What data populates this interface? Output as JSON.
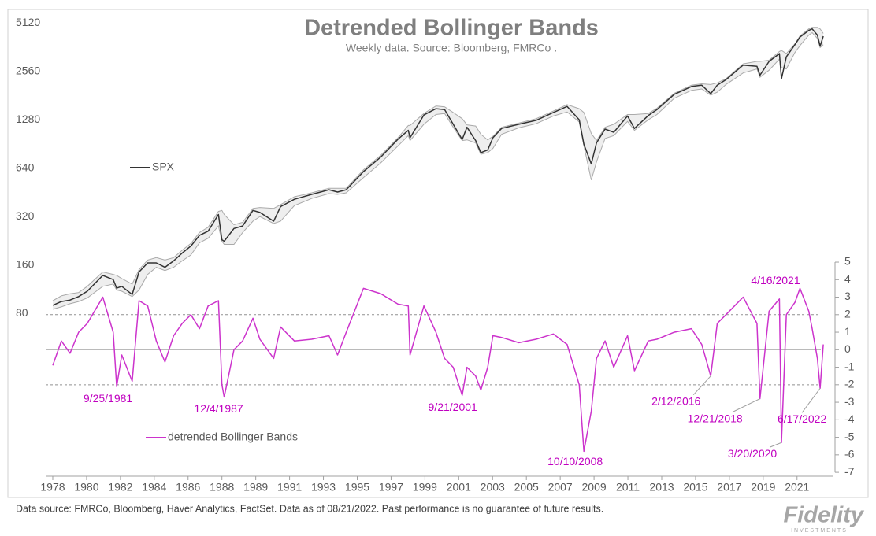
{
  "chart_data": {
    "type": "line",
    "title": "Detrended Bollinger Bands",
    "subtitle": "Weekly data.  Source: Bloomberg, FMRCo .",
    "x": [
      1978.0,
      1978.5,
      1979.0,
      1979.5,
      1980.0,
      1980.9,
      1981.5,
      1981.7,
      1982.0,
      1982.6,
      1983.0,
      1983.5,
      1984.0,
      1984.5,
      1985.0,
      1985.5,
      1986.0,
      1986.5,
      1987.0,
      1987.6,
      1987.8,
      1987.93,
      1988.5,
      1989.0,
      1989.6,
      1990.0,
      1990.8,
      1991.2,
      1992.0,
      1993.0,
      1994.0,
      1994.5,
      1995.0,
      1996.0,
      1997.0,
      1998.0,
      1998.6,
      1998.7,
      1999.5,
      2000.2,
      2000.7,
      2001.2,
      2001.72,
      2002.0,
      2002.5,
      2002.8,
      2003.2,
      2003.5,
      2004.0,
      2005.0,
      2006.0,
      2007.0,
      2007.8,
      2008.5,
      2008.77,
      2009.2,
      2009.5,
      2010.0,
      2010.5,
      2011.3,
      2011.7,
      2012.5,
      2013.0,
      2014.0,
      2015.0,
      2015.6,
      2016.12,
      2016.5,
      2017.0,
      2018.0,
      2018.8,
      2018.97,
      2019.5,
      2020.1,
      2020.22,
      2020.5,
      2021.0,
      2021.29,
      2021.8,
      2022.0,
      2022.3,
      2022.46,
      2022.64
    ],
    "series": [
      {
        "name": "SPX",
        "color": "#333333",
        "values": [
          90,
          95,
          97,
          102,
          110,
          138,
          130,
          115,
          118,
          105,
          145,
          165,
          165,
          155,
          170,
          190,
          210,
          245,
          260,
          330,
          230,
          225,
          270,
          280,
          350,
          340,
          300,
          370,
          410,
          440,
          470,
          455,
          470,
          610,
          750,
          970,
          1100,
          990,
          1370,
          1500,
          1480,
          1200,
          965,
          1150,
          950,
          800,
          830,
          990,
          1130,
          1200,
          1270,
          1420,
          1550,
          1280,
          900,
          680,
          920,
          1120,
          1070,
          1350,
          1130,
          1360,
          1480,
          1840,
          2060,
          2100,
          1860,
          2100,
          2270,
          2800,
          2750,
          2420,
          2950,
          3300,
          2300,
          3150,
          3750,
          4180,
          4600,
          4700,
          4300,
          3670,
          4230
        ]
      },
      {
        "name": "detrended Bollinger Bands",
        "color": "#cc33cc",
        "axis": "y2",
        "values": [
          -0.9,
          0.5,
          -0.2,
          1.0,
          1.5,
          3.0,
          1.0,
          -2.1,
          -0.3,
          -1.8,
          2.8,
          2.5,
          0.5,
          -0.7,
          0.8,
          1.5,
          2.0,
          1.2,
          2.5,
          2.8,
          -2.0,
          -2.7,
          0,
          0.5,
          1.8,
          0.6,
          -0.5,
          1.3,
          0.5,
          0.6,
          0.8,
          -0.3,
          1.0,
          3.5,
          3.2,
          2.6,
          2.5,
          -0.3,
          2.5,
          1.0,
          -0.5,
          -1.0,
          -2.6,
          -1.0,
          -1.5,
          -2.3,
          -1.0,
          0.8,
          0.7,
          0.4,
          0.6,
          0.9,
          0.3,
          -2.0,
          -5.8,
          -3.5,
          -0.5,
          0.5,
          -1.0,
          0.8,
          -1.2,
          0.5,
          0.6,
          1.0,
          1.2,
          0.3,
          -1.5,
          1.5,
          2.0,
          3.0,
          1.5,
          -2.8,
          2.2,
          2.9,
          -5.3,
          2.0,
          2.7,
          3.5,
          2.2,
          1.2,
          -0.5,
          -2.2,
          0.3
        ]
      }
    ],
    "band": {
      "color": "#aaaaaa",
      "fill": "#eeeeee",
      "upper": [
        96,
        103,
        106,
        108,
        118,
        145,
        140,
        138,
        132,
        122,
        150,
        172,
        178,
        172,
        178,
        198,
        218,
        255,
        275,
        345,
        350,
        330,
        285,
        295,
        360,
        365,
        360,
        380,
        425,
        450,
        480,
        480,
        480,
        625,
        770,
        990,
        1180,
        1180,
        1400,
        1560,
        1540,
        1420,
        1300,
        1190,
        1170,
        1040,
        960,
        1010,
        1150,
        1220,
        1300,
        1450,
        1590,
        1500,
        1420,
        1050,
        950,
        1150,
        1200,
        1380,
        1380,
        1400,
        1510,
        1870,
        2100,
        2140,
        2120,
        2170,
        2300,
        2850,
        2950,
        2950,
        3000,
        3400,
        3450,
        3300,
        3800,
        4250,
        4700,
        4800,
        4800,
        4700,
        4400
      ],
      "lower": [
        85,
        88,
        92,
        95,
        100,
        118,
        122,
        112,
        110,
        102,
        112,
        140,
        155,
        148,
        155,
        170,
        185,
        220,
        235,
        280,
        225,
        215,
        215,
        255,
        300,
        320,
        290,
        300,
        375,
        415,
        445,
        440,
        450,
        560,
        690,
        880,
        1020,
        950,
        1200,
        1380,
        1400,
        1150,
        950,
        960,
        920,
        780,
        800,
        850,
        1040,
        1140,
        1210,
        1350,
        1430,
        1240,
        880,
        540,
        700,
        980,
        1020,
        1250,
        1100,
        1280,
        1380,
        1740,
        1950,
        1990,
        1820,
        1900,
        2120,
        2500,
        2650,
        2350,
        2600,
        3050,
        2700,
        2650,
        3350,
        3700,
        4300,
        4450,
        4100,
        3600,
        3750
      ]
    },
    "xlim": [
      1977.59,
      2023.23
    ],
    "xticks": [
      {
        "value": 1978.0,
        "label": "1978"
      },
      {
        "value": 1979.96,
        "label": "1980"
      },
      {
        "value": 1981.92,
        "label": "1982"
      },
      {
        "value": 1983.88,
        "label": "1984"
      },
      {
        "value": 1985.84,
        "label": "1986"
      },
      {
        "value": 1987.8,
        "label": "1988"
      },
      {
        "value": 1989.76,
        "label": "1989"
      },
      {
        "value": 1991.72,
        "label": "1991"
      },
      {
        "value": 1993.68,
        "label": "1993"
      },
      {
        "value": 1995.64,
        "label": "1995"
      },
      {
        "value": 1997.6,
        "label": "1997"
      },
      {
        "value": 1999.56,
        "label": "1999"
      },
      {
        "value": 2001.52,
        "label": "2001"
      },
      {
        "value": 2003.48,
        "label": "2003"
      },
      {
        "value": 2005.44,
        "label": "2005"
      },
      {
        "value": 2007.4,
        "label": "2007"
      },
      {
        "value": 2009.36,
        "label": "2009"
      },
      {
        "value": 2011.32,
        "label": "2011"
      },
      {
        "value": 2013.28,
        "label": "2013"
      },
      {
        "value": 2015.24,
        "label": "2015"
      },
      {
        "value": 2017.2,
        "label": "2017"
      },
      {
        "value": 2019.16,
        "label": "2019"
      },
      {
        "value": 2021.12,
        "label": "2021"
      }
    ],
    "ylim": [
      7.8,
      6000
    ],
    "yticks": [
      80,
      160,
      320,
      640,
      1280,
      2560,
      5120
    ],
    "log_scale": true,
    "y2lim": [
      -7.22,
      19.29
    ],
    "y2ticks": [
      -7,
      -6,
      -5,
      -4,
      -3,
      -2,
      -1,
      0,
      1,
      2,
      3,
      4,
      5
    ],
    "y2_lines": [
      {
        "value": 2,
        "style": "dashed"
      },
      {
        "value": 0,
        "style": "solid"
      },
      {
        "value": -2,
        "style": "dashed"
      }
    ],
    "annotations": [
      {
        "text": "9/25/1981",
        "x": 1981.7,
        "y": -2.1
      },
      {
        "text": "12/4/1987",
        "x": 1987.93,
        "y": -2.7
      },
      {
        "text": "9/21/2001",
        "x": 2001.72,
        "y": -2.6
      },
      {
        "text": "10/10/2008",
        "x": 2008.77,
        "y": -5.8
      },
      {
        "text": "2/12/2016",
        "x": 2016.12,
        "y": -1.5
      },
      {
        "text": "12/21/2018",
        "x": 2018.97,
        "y": -2.8
      },
      {
        "text": "3/20/2020",
        "x": 2020.22,
        "y": -5.3
      },
      {
        "text": "4/16/2021",
        "x": 2021.29,
        "y": 3.5
      },
      {
        "text": "6/17/2022",
        "x": 2022.46,
        "y": -2.2
      }
    ]
  },
  "footer": {
    "note": "Data source: FMRCo, Bloomberg, Haver Analytics, FactSet. Data as of 08/21/2022. Past performance is no guarantee of future results.",
    "logo": "Fidelity",
    "logo_sub": "INVESTMENTS"
  }
}
